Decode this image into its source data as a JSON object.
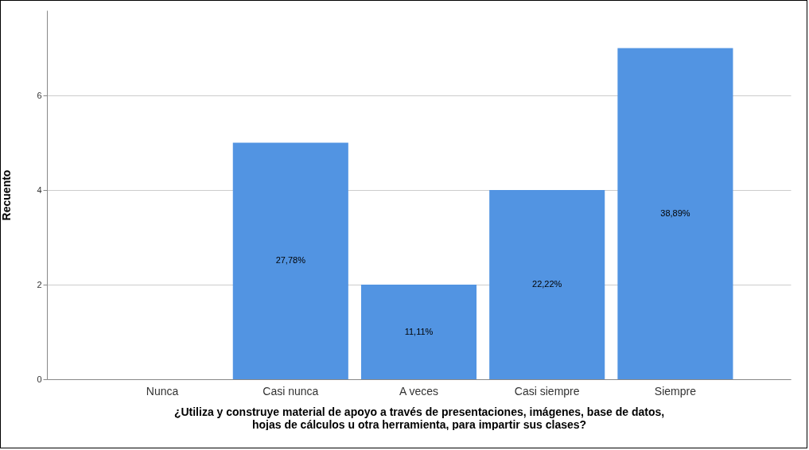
{
  "chart_data": {
    "type": "bar",
    "xlabel": "¿Utiliza y construye material de apoyo a través de presentaciones, imágenes, base de datos, hojas de cálculos u otra herramienta, para impartir sus clases?",
    "ylabel": "Recuento",
    "categories": [
      "Nunca",
      "Casi nunca",
      "A veces",
      "Casi siempre",
      "Siempre"
    ],
    "values": [
      0,
      5,
      2,
      4,
      7
    ],
    "color": "#5294e2",
    "annotations": [
      "27,78%",
      "11,11%",
      "22,22%",
      "38,89%"
    ],
    "ylim": [
      0,
      7.8
    ],
    "yticks": [
      0,
      2,
      4,
      6
    ],
    "grid": "y"
  }
}
